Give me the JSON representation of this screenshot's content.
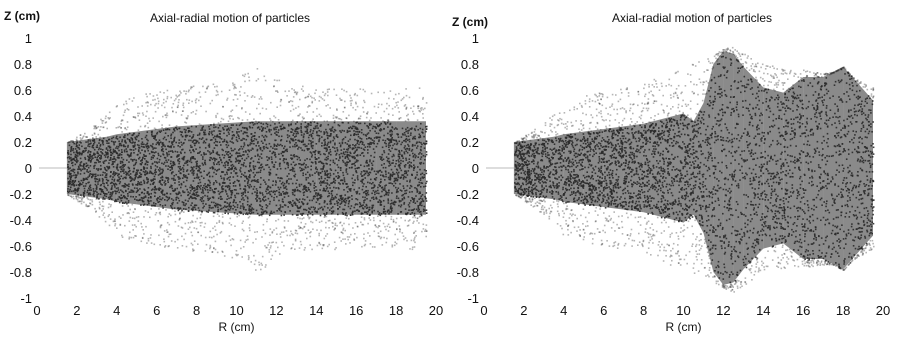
{
  "chart_data": [
    {
      "type": "scatter",
      "title": "Axial-radial motion of particles",
      "xlabel": "R (cm)",
      "ylabel": "Z (cm)",
      "xlim": [
        0,
        20
      ],
      "ylim": [
        -1,
        1
      ],
      "xticks": [
        "0",
        "2",
        "4",
        "6",
        "8",
        "10",
        "12",
        "14",
        "16",
        "18",
        "20"
      ],
      "yticks": [
        "1",
        "0.8",
        "0.6",
        "0.4",
        "0.2",
        "0",
        "-0.2",
        "-0.4",
        "-0.6",
        "-0.8",
        "-1"
      ],
      "grid": false,
      "color": "#2a2a2a",
      "envelope": {
        "r": [
          1.5,
          2.5,
          3.5,
          4.0,
          5.0,
          6.0,
          7.0,
          8.0,
          9.0,
          10.0,
          11.0,
          12.0,
          13.0,
          14.0,
          15.0,
          16.0,
          17.0,
          18.0,
          19.5
        ],
        "z_outer": [
          0.2,
          0.3,
          0.42,
          0.52,
          0.56,
          0.6,
          0.62,
          0.64,
          0.66,
          0.7,
          0.8,
          0.7,
          0.64,
          0.62,
          0.62,
          0.62,
          0.6,
          0.62,
          0.62
        ],
        "z_core": [
          0.2,
          0.22,
          0.24,
          0.26,
          0.28,
          0.3,
          0.32,
          0.33,
          0.34,
          0.35,
          0.36,
          0.36,
          0.36,
          0.36,
          0.36,
          0.36,
          0.36,
          0.36,
          0.36
        ]
      }
    },
    {
      "type": "scatter",
      "title": "Axial-radial motion of particles",
      "xlabel": "R (cm)",
      "ylabel": "Z (cm)",
      "xlim": [
        0,
        20
      ],
      "ylim": [
        -1,
        1
      ],
      "xticks": [
        "0",
        "2",
        "4",
        "6",
        "8",
        "10",
        "12",
        "14",
        "16",
        "18",
        "20"
      ],
      "yticks": [
        "1",
        "0.8",
        "0.6",
        "0.4",
        "0.2",
        "0",
        "-0.2",
        "-0.4",
        "-0.6",
        "-0.8",
        "-1"
      ],
      "grid": false,
      "color": "#2a2a2a",
      "envelope": {
        "r": [
          1.5,
          2.5,
          3.5,
          4.0,
          5.0,
          6.0,
          7.0,
          8.0,
          9.0,
          10.0,
          10.5,
          11.0,
          11.5,
          12.0,
          12.5,
          13.0,
          14.0,
          15.0,
          16.0,
          17.0,
          18.0,
          19.5
        ],
        "z_outer": [
          0.2,
          0.3,
          0.42,
          0.52,
          0.56,
          0.6,
          0.62,
          0.66,
          0.72,
          0.8,
          0.82,
          0.84,
          0.88,
          0.92,
          0.95,
          0.9,
          0.8,
          0.78,
          0.76,
          0.74,
          0.74,
          0.62
        ],
        "z_core": [
          0.2,
          0.22,
          0.24,
          0.26,
          0.28,
          0.3,
          0.32,
          0.34,
          0.38,
          0.42,
          0.36,
          0.5,
          0.8,
          0.9,
          0.88,
          0.78,
          0.62,
          0.58,
          0.7,
          0.7,
          0.78,
          0.52
        ]
      }
    }
  ]
}
